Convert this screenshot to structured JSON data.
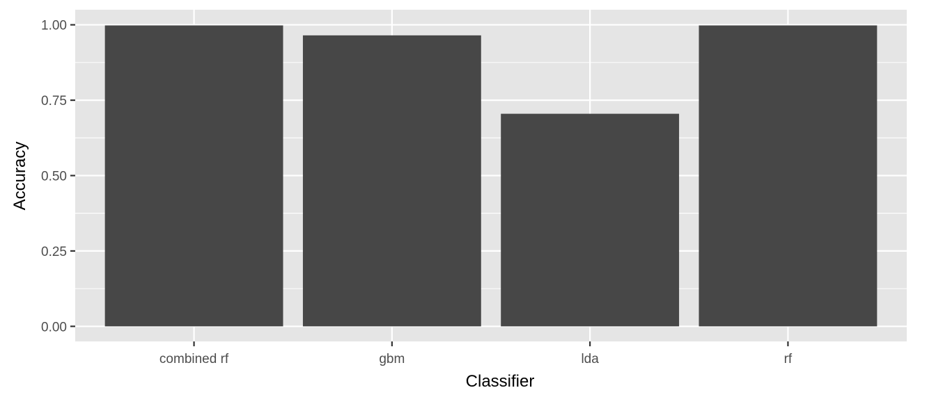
{
  "chart_data": {
    "type": "bar",
    "categories": [
      "combined rf",
      "gbm",
      "lda",
      "rf"
    ],
    "values": [
      0.998,
      0.965,
      0.705,
      0.998
    ],
    "title": "",
    "xlabel": "Classifier",
    "ylabel": "Accuracy",
    "ylim": [
      -0.05,
      1.05
    ],
    "yticks": [
      "0.00",
      "0.25",
      "0.50",
      "0.75",
      "1.00"
    ],
    "ytick_values": [
      0,
      0.25,
      0.5,
      0.75,
      1.0
    ],
    "grid": true,
    "legend": "none",
    "colors": {
      "panel_background": "#e5e5e5",
      "grid": "#ffffff",
      "bar_fill": "#474747",
      "tick_text": "#4d4d4d",
      "axis_title": "#000000"
    }
  }
}
